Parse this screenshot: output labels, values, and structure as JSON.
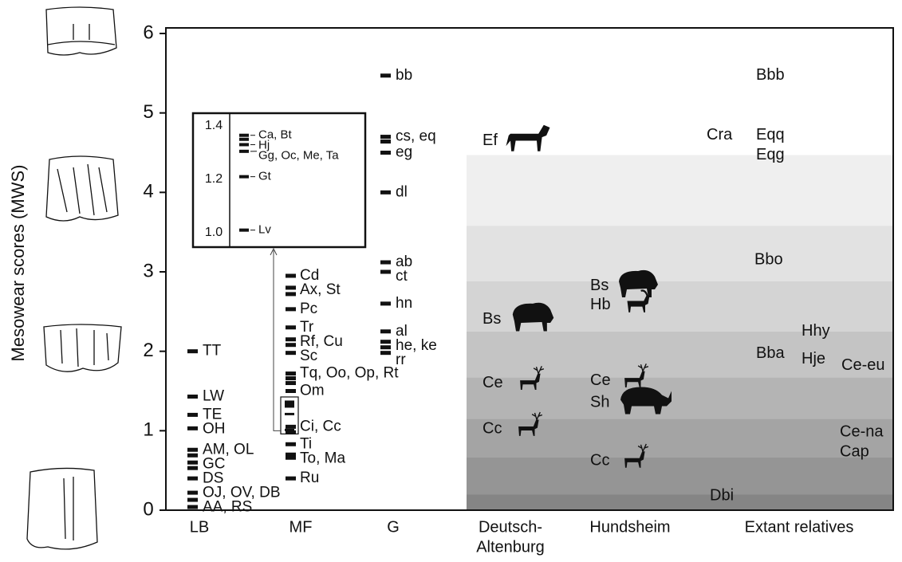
{
  "chart_data": {
    "type": "strip",
    "y_label": "Mesowear scores (MWS)",
    "ylim": [
      0,
      6
    ],
    "yticks": [
      0,
      1,
      2,
      3,
      4,
      5,
      6
    ],
    "bands": [
      {
        "top": 4.47,
        "color": "#efefef"
      },
      {
        "top": 3.58,
        "color": "#e2e2e2"
      },
      {
        "top": 2.88,
        "color": "#d4d4d4"
      },
      {
        "top": 2.25,
        "color": "#c4c4c4"
      },
      {
        "top": 1.67,
        "color": "#b4b4b4"
      },
      {
        "top": 1.15,
        "color": "#a4a4a4"
      },
      {
        "top": 0.67,
        "color": "#959595"
      },
      {
        "top": 0.2,
        "color": "#858585"
      }
    ],
    "groups": [
      {
        "label_lines": [
          "LB"
        ],
        "marker": "dash",
        "points": [
          {
            "label": "TT",
            "values": [
              2.0
            ]
          },
          {
            "label": "LW",
            "values": [
              1.43
            ]
          },
          {
            "label": "TE",
            "values": [
              1.2
            ]
          },
          {
            "label": "OH",
            "values": [
              1.03
            ]
          },
          {
            "label": "AM, OL",
            "values": [
              0.76,
              0.69
            ]
          },
          {
            "label": "GC",
            "values": [
              0.6,
              0.53
            ]
          },
          {
            "label": "DS",
            "values": [
              0.4
            ]
          },
          {
            "label": "OJ, OV, DB",
            "values": [
              0.22,
              0.13
            ]
          },
          {
            "label": "AA, RS",
            "values": [
              0.04
            ]
          }
        ]
      },
      {
        "label_lines": [
          "MF"
        ],
        "marker": "dash",
        "points": [
          {
            "label": "Cd",
            "values": [
              2.95
            ]
          },
          {
            "label": "Ax, St",
            "values": [
              2.8,
              2.72
            ]
          },
          {
            "label": "Pc",
            "values": [
              2.53
            ]
          },
          {
            "label": "Tr",
            "values": [
              2.3
            ]
          },
          {
            "label": "Rf, Cu",
            "values": [
              2.15,
              2.08
            ]
          },
          {
            "label": "Sc",
            "values": [
              1.98
            ]
          },
          {
            "label": "Tq, Oo, Op, Rt",
            "values": [
              1.72,
              1.66,
              1.6
            ]
          },
          {
            "label": "Om",
            "values": [
              1.5
            ]
          },
          {
            "label": "Ci, Cc",
            "values": [
              1.05,
              0.98
            ]
          },
          {
            "label": "Ti",
            "values": [
              0.83
            ]
          },
          {
            "label": "To, Ma",
            "values": [
              0.7,
              0.66
            ]
          },
          {
            "label": "Ru",
            "values": [
              0.4
            ]
          }
        ]
      },
      {
        "label_lines": [
          "G"
        ],
        "marker": "dash",
        "points": [
          {
            "label": "bb",
            "values": [
              5.47
            ]
          },
          {
            "label": "cs, eq",
            "values": [
              4.7,
              4.64
            ]
          },
          {
            "label": "eg",
            "values": [
              4.5
            ]
          },
          {
            "label": "dl",
            "values": [
              4.0
            ]
          },
          {
            "label": "ab",
            "values": [
              3.12
            ]
          },
          {
            "label": "ct",
            "values": [
              3.0
            ]
          },
          {
            "label": "hn",
            "values": [
              2.6
            ]
          },
          {
            "label": "al",
            "values": [
              2.25
            ]
          },
          {
            "label": "he, ke",
            "values": [
              2.12,
              2.05
            ]
          },
          {
            "label": "rr",
            "values": [
              1.98
            ]
          }
        ]
      },
      {
        "label_lines": [
          "Deutsch-",
          "Altenburg"
        ],
        "marker": "icon",
        "points": [
          {
            "label": "Ef",
            "values": [
              4.65
            ]
          },
          {
            "label": "Bs",
            "values": [
              2.4
            ]
          },
          {
            "label": "Ce",
            "values": [
              1.6
            ]
          },
          {
            "label": "Cc",
            "values": [
              1.02
            ]
          }
        ]
      },
      {
        "label_lines": [
          "Hundsheim"
        ],
        "marker": "icon",
        "points": [
          {
            "label": "Bs",
            "values": [
              2.82
            ]
          },
          {
            "label": "Hb",
            "values": [
              2.58
            ]
          },
          {
            "label": "Ce",
            "values": [
              1.63
            ]
          },
          {
            "label": "Sh",
            "values": [
              1.35
            ]
          },
          {
            "label": "Cc",
            "values": [
              0.62
            ]
          }
        ]
      },
      {
        "label_lines": [
          "Extant relatives"
        ],
        "marker": "none",
        "points": [
          {
            "label": "Bbb",
            "values": [
              5.47
            ]
          },
          {
            "label": "Cra",
            "values": [
              4.72
            ]
          },
          {
            "label": "Eqq",
            "values": [
              4.72
            ]
          },
          {
            "label": "Eqg",
            "values": [
              4.47
            ]
          },
          {
            "label": "Bbo",
            "values": [
              3.15
            ]
          },
          {
            "label": "Hhy",
            "values": [
              2.25
            ]
          },
          {
            "label": "Bba",
            "values": [
              1.97
            ]
          },
          {
            "label": "Hje",
            "values": [
              1.9
            ]
          },
          {
            "label": "Ce-eu",
            "values": [
              1.82
            ]
          },
          {
            "label": "Ce-na",
            "values": [
              0.98
            ]
          },
          {
            "label": "Cap",
            "values": [
              0.73
            ]
          },
          {
            "label": "Dbi",
            "values": [
              0.18
            ]
          }
        ]
      }
    ],
    "inset": {
      "ylim": [
        1.0,
        1.4
      ],
      "yticks": [
        {
          "value": 1.0,
          "label": "1.0"
        },
        1.2,
        1.4
      ],
      "points": [
        {
          "label": "Ca, Bt",
          "values": [
            1.365,
            1.35
          ]
        },
        {
          "label": "Hj",
          "values": [
            1.33
          ]
        },
        {
          "label": "Gg, Oc, Me, Ta",
          "values": [
            1.305
          ]
        },
        {
          "label": "Gt",
          "values": [
            1.21
          ]
        },
        {
          "label": "Lv",
          "values": [
            1.01
          ]
        }
      ]
    }
  }
}
